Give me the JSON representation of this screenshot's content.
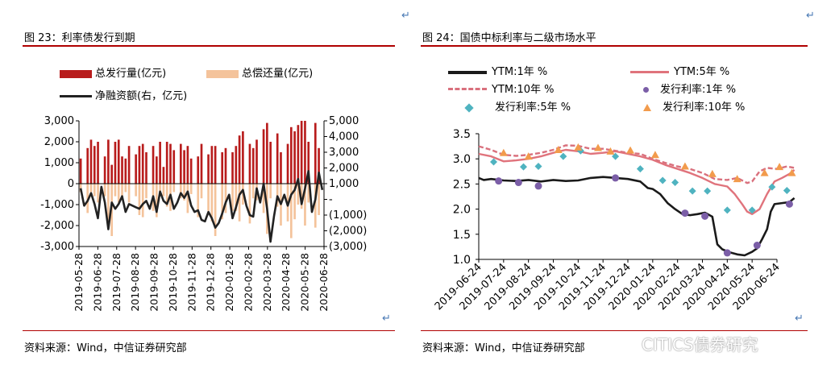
{
  "left": {
    "figure_title": "图 23：利率债发行到期",
    "source": "资料来源：Wind，中信证券研究部",
    "chart_data": {
      "type": "bar",
      "legend": [
        "总发行量(亿元)",
        "总偿还量(亿元)",
        "净融资额(右，亿元)"
      ],
      "colors": {
        "issue": "#b81c1c",
        "repay": "#f4c39b",
        "net": "#222222"
      },
      "x_tick_labels": [
        "2019-05-28",
        "2019-06-28",
        "2019-07-28",
        "2019-08-28",
        "2019-09-28",
        "2019-10-28",
        "2019-11-28",
        "2019-12-28",
        "2020-01-28",
        "2020-02-28",
        "2020-03-28",
        "2020-04-28",
        "2020-05-28",
        "2020-06-28"
      ],
      "left_axis": {
        "ylim": [
          -3000,
          3000
        ],
        "tick_labels": [
          "3,000",
          "2,000",
          "1,000",
          "0",
          "-1,000",
          "-2,000",
          "-3,000"
        ]
      },
      "right_axis": {
        "ylim": [
          -3000,
          5000
        ],
        "tick_labels": [
          "5,000",
          "4,000",
          "3,000",
          "2,000",
          "1,000",
          "-",
          "(1,000)",
          "(2,000)",
          "(3,000)"
        ]
      },
      "issue": [
        1200,
        0,
        1700,
        2100,
        1800,
        2000,
        0,
        1300,
        2100,
        900,
        2000,
        2100,
        1300,
        1200,
        1800,
        0,
        1400,
        1800,
        1900,
        1500,
        0,
        1800,
        1300,
        2000,
        800,
        2000,
        1900,
        1600,
        0,
        1900,
        1600,
        1800,
        1200,
        0,
        1300,
        1900,
        0,
        1400,
        1800,
        1800,
        0,
        1500,
        1700,
        0,
        1500,
        1800,
        2300,
        2500,
        0,
        1900,
        1700,
        2100,
        0,
        2600,
        2900,
        2000,
        0,
        2400,
        1500,
        0,
        1900,
        2700,
        2500,
        2800,
        3000,
        3000,
        2000,
        0,
        2900,
        1700,
        0
      ],
      "repay": [
        -400,
        0,
        -1400,
        -400,
        -600,
        -900,
        0,
        -600,
        -2100,
        -2500,
        -600,
        -900,
        -700,
        -400,
        -900,
        0,
        -600,
        -1500,
        -1600,
        -700,
        0,
        -1300,
        -1600,
        -500,
        -600,
        -1100,
        -1300,
        -400,
        0,
        -700,
        -800,
        -1400,
        -500,
        0,
        -1600,
        -700,
        0,
        -1300,
        -1800,
        -2500,
        0,
        -1700,
        -1400,
        0,
        -1300,
        -1300,
        -1800,
        -1000,
        0,
        -1900,
        -700,
        -800,
        0,
        -1400,
        -2400,
        -700,
        0,
        -1100,
        -2000,
        0,
        -1800,
        -2600,
        -1700,
        -1000,
        -1200,
        -2000,
        -900,
        0,
        -2100,
        -1500,
        0
      ],
      "net": [
        700,
        -400,
        -100,
        400,
        -300,
        -1200,
        800,
        -200,
        -1900,
        -200,
        -600,
        -300,
        200,
        -800,
        -300,
        -400,
        -500,
        -600,
        -300,
        -100,
        -600,
        200,
        -800,
        500,
        -100,
        -300,
        300,
        -600,
        -200,
        400,
        100,
        500,
        -400,
        -800,
        -700,
        -1300,
        -1400,
        -800,
        -1200,
        -1800,
        -1500,
        -900,
        -200,
        300,
        -1200,
        -500,
        300,
        600,
        -400,
        -1000,
        -1100,
        700,
        -200,
        1000,
        -600,
        -2700,
        -1100,
        200,
        -300,
        300,
        -400,
        300,
        600,
        1300,
        -300,
        700,
        1800,
        -800,
        0,
        1700,
        600
      ]
    }
  },
  "right": {
    "figure_title": "图 24：国债中标利率与二级市场水平",
    "source": "资料来源：Wind，中信证券研究部",
    "chart_data": {
      "type": "line",
      "legend": [
        "YTM:1年 %",
        "YTM:5年 %",
        "YTM:10年 %",
        "发行利率:1年 %",
        "发行利率:5年 %",
        "发行利率:10年 %"
      ],
      "colors": {
        "ytm1": "#1a1a1a",
        "ytm5": "#e0737c",
        "ytm10": "#d9707d",
        "iss1": "#7b5ea7",
        "iss5": "#4fb3c0",
        "iss10": "#f29b4c"
      },
      "ylim": [
        1.0,
        3.5
      ],
      "y_tick_labels": [
        "3.5",
        "3.0",
        "2.5",
        "2.0",
        "1.5",
        "1.0"
      ],
      "x_tick_labels": [
        "2019-06-24",
        "2019-07-24",
        "2019-08-24",
        "2019-09-24",
        "2019-10-24",
        "2019-11-24",
        "2019-12-24",
        "2020-01-24",
        "2020-02-24",
        "2020-03-24",
        "2020-04-24",
        "2020-05-24",
        "2020-06-24"
      ],
      "ytm1": [
        [
          0,
          2.62
        ],
        [
          0.2,
          2.58
        ],
        [
          0.5,
          2.6
        ],
        [
          1,
          2.57
        ],
        [
          1.5,
          2.56
        ],
        [
          2,
          2.58
        ],
        [
          2.5,
          2.55
        ],
        [
          3,
          2.58
        ],
        [
          3.5,
          2.56
        ],
        [
          4,
          2.57
        ],
        [
          4.5,
          2.62
        ],
        [
          5,
          2.64
        ],
        [
          5.5,
          2.62
        ],
        [
          6,
          2.6
        ],
        [
          6.5,
          2.55
        ],
        [
          6.8,
          2.42
        ],
        [
          7,
          2.4
        ],
        [
          7.3,
          2.3
        ],
        [
          7.6,
          2.12
        ],
        [
          7.9,
          2.0
        ],
        [
          8.2,
          1.9
        ],
        [
          8.5,
          1.88
        ],
        [
          8.8,
          1.9
        ],
        [
          9.1,
          1.93
        ],
        [
          9.4,
          1.85
        ],
        [
          9.6,
          1.3
        ],
        [
          9.8,
          1.2
        ],
        [
          10.1,
          1.14
        ],
        [
          10.4,
          1.1
        ],
        [
          10.7,
          1.08
        ],
        [
          11.0,
          1.15
        ],
        [
          11.2,
          1.22
        ],
        [
          11.4,
          1.4
        ],
        [
          11.6,
          1.6
        ],
        [
          11.75,
          1.95
        ],
        [
          11.9,
          2.1
        ],
        [
          12.2,
          2.12
        ],
        [
          12.5,
          2.14
        ],
        [
          12.7,
          2.22
        ]
      ],
      "ytm5": [
        [
          0,
          3.1
        ],
        [
          0.5,
          3.05
        ],
        [
          1,
          2.95
        ],
        [
          1.5,
          2.97
        ],
        [
          2,
          3.0
        ],
        [
          2.5,
          3.05
        ],
        [
          3,
          3.12
        ],
        [
          3.5,
          3.18
        ],
        [
          4,
          3.15
        ],
        [
          4.5,
          3.1
        ],
        [
          5,
          3.12
        ],
        [
          5.5,
          3.15
        ],
        [
          6,
          3.1
        ],
        [
          6.5,
          3.05
        ],
        [
          7,
          2.98
        ],
        [
          7.5,
          2.88
        ],
        [
          8,
          2.8
        ],
        [
          8.5,
          2.72
        ],
        [
          9,
          2.62
        ],
        [
          9.5,
          2.5
        ],
        [
          10,
          2.45
        ],
        [
          10.3,
          2.3
        ],
        [
          10.6,
          2.1
        ],
        [
          10.8,
          1.95
        ],
        [
          11,
          1.9
        ],
        [
          11.3,
          2.0
        ],
        [
          11.6,
          2.3
        ],
        [
          11.9,
          2.55
        ],
        [
          12.2,
          2.62
        ],
        [
          12.5,
          2.7
        ],
        [
          12.7,
          2.78
        ]
      ],
      "ytm10": [
        [
          0,
          3.25
        ],
        [
          0.5,
          3.18
        ],
        [
          1,
          3.08
        ],
        [
          1.5,
          3.06
        ],
        [
          2,
          3.08
        ],
        [
          2.5,
          3.12
        ],
        [
          3,
          3.18
        ],
        [
          3.5,
          3.27
        ],
        [
          4,
          3.26
        ],
        [
          4.5,
          3.2
        ],
        [
          5,
          3.2
        ],
        [
          5.5,
          3.16
        ],
        [
          6,
          3.12
        ],
        [
          6.5,
          3.1
        ],
        [
          7,
          3.0
        ],
        [
          7.5,
          2.92
        ],
        [
          8,
          2.85
        ],
        [
          8.5,
          2.8
        ],
        [
          9,
          2.72
        ],
        [
          9.5,
          2.6
        ],
        [
          10,
          2.58
        ],
        [
          10.4,
          2.62
        ],
        [
          10.8,
          2.52
        ],
        [
          11,
          2.55
        ],
        [
          11.3,
          2.75
        ],
        [
          11.6,
          2.82
        ],
        [
          12,
          2.8
        ],
        [
          12.4,
          2.85
        ],
        [
          12.7,
          2.82
        ]
      ],
      "issue_1y": [
        [
          0.8,
          2.56
        ],
        [
          1.6,
          2.53
        ],
        [
          2.4,
          2.46
        ],
        [
          5.5,
          2.62
        ],
        [
          8.3,
          1.92
        ],
        [
          9.1,
          1.86
        ],
        [
          10.0,
          1.13
        ],
        [
          11.2,
          1.28
        ],
        [
          12.5,
          2.1
        ]
      ],
      "issue_5y": [
        [
          0.6,
          2.94
        ],
        [
          1.8,
          2.84
        ],
        [
          2.4,
          2.85
        ],
        [
          3.4,
          3.05
        ],
        [
          4.1,
          3.16
        ],
        [
          5.5,
          3.05
        ],
        [
          6.5,
          2.8
        ],
        [
          7.4,
          2.57
        ],
        [
          7.9,
          2.53
        ],
        [
          8.6,
          2.36
        ],
        [
          9.2,
          2.36
        ],
        [
          10.0,
          1.98
        ],
        [
          11.0,
          1.98
        ],
        [
          11.8,
          2.44
        ],
        [
          12.4,
          2.37
        ]
      ],
      "issue_10y": [
        [
          1.0,
          3.12
        ],
        [
          2.0,
          3.05
        ],
        [
          3.2,
          3.18
        ],
        [
          4.0,
          3.23
        ],
        [
          4.8,
          3.22
        ],
        [
          5.3,
          3.15
        ],
        [
          6.1,
          3.17
        ],
        [
          7.1,
          3.08
        ],
        [
          8.3,
          2.85
        ],
        [
          9.4,
          2.7
        ],
        [
          10.4,
          2.6
        ],
        [
          11.5,
          2.72
        ],
        [
          12.1,
          2.84
        ],
        [
          12.6,
          2.72
        ]
      ]
    }
  },
  "watermark": "CITICS债券研究"
}
